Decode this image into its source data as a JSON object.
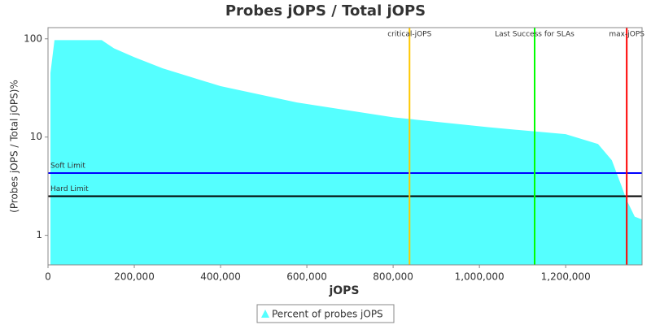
{
  "chart_data": {
    "type": "area",
    "title": "Probes jOPS / Total jOPS",
    "x_label": "jOPS",
    "y_label": "(Probes jOPS / Total jOPS)%",
    "log_y": true,
    "grid": false,
    "xlim": [
      0,
      1377000
    ],
    "ylim": [
      0.5,
      130
    ],
    "xticks": [
      0,
      {
        "value": 200000,
        "label": "200,000"
      },
      {
        "value": 400000,
        "label": "400,000"
      },
      {
        "value": 600000,
        "label": "600,000"
      },
      {
        "value": 800000,
        "label": "800,000"
      },
      {
        "value": 1000000,
        "label": "1,000,000"
      },
      {
        "value": 1200000,
        "label": "1,200,000"
      }
    ],
    "yticks": [
      1,
      10,
      100
    ],
    "series": [
      {
        "name": "Percent of probes jOPS",
        "color": "#55ffff",
        "x": [
          5660,
          15000,
          124500,
          153000,
          200000,
          266000,
          400000,
          577000,
          800000,
          1020000,
          1200000,
          1275000,
          1307000,
          1328000,
          1341000,
          1360000,
          1377000
        ],
        "values": [
          45,
          97,
          97,
          80,
          65,
          50,
          33,
          22.5,
          15.9,
          12.6,
          10.7,
          8.5,
          5.8,
          3.3,
          2.3,
          1.55,
          1.45
        ]
      }
    ],
    "vlines": [
      {
        "label": "critical-jOPS",
        "x": 838000,
        "color": "#ffc800"
      },
      {
        "label": "Last Success for SLAs",
        "x": 1128000,
        "color": "#00ff00"
      },
      {
        "label": "max-jOPS",
        "x": 1341500,
        "color": "#ff0000"
      }
    ],
    "hlines": [
      {
        "label": "Soft Limit",
        "y": 4.3,
        "color": "#0000ff"
      },
      {
        "label": "Hard Limit",
        "y": 2.5,
        "color": "#000000"
      }
    ]
  }
}
